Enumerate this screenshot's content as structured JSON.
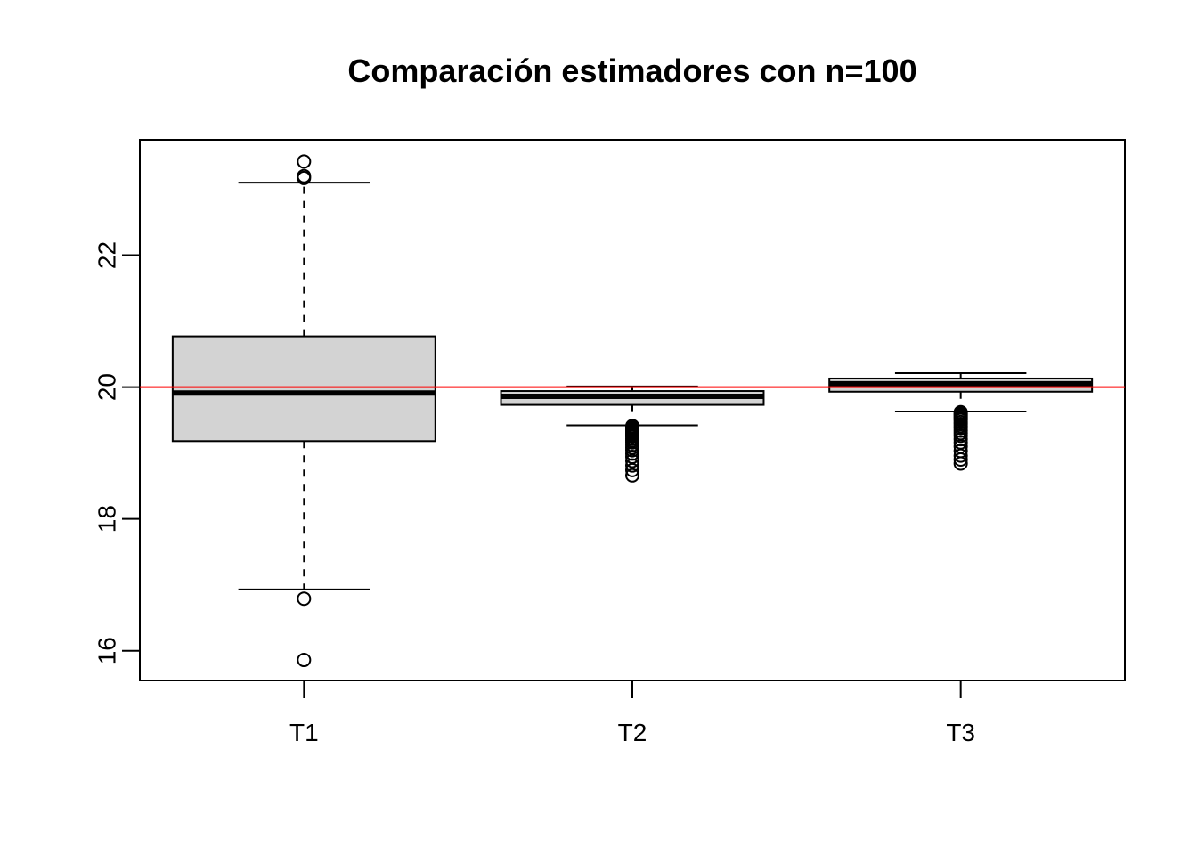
{
  "chart_data": {
    "type": "boxplot",
    "title": "Comparación estimadores con n=100",
    "xlabel": "",
    "ylabel": "",
    "categories": [
      "T1",
      "T2",
      "T3"
    ],
    "ylim": [
      15.55,
      23.75
    ],
    "yticks": [
      16,
      18,
      20,
      22
    ],
    "reference_line": {
      "y": 20,
      "color": "#ff0000"
    },
    "box_fill": "#d3d3d3",
    "boxes": [
      {
        "name": "T1",
        "whisker_low": 16.93,
        "q1": 19.18,
        "median": 19.91,
        "q3": 20.77,
        "whisker_high": 23.1,
        "outliers": [
          23.42,
          23.2,
          23.17,
          16.79,
          15.86
        ]
      },
      {
        "name": "T2",
        "whisker_low": 19.42,
        "q1": 19.73,
        "median": 19.86,
        "q3": 19.94,
        "whisker_high": 20.01,
        "outliers": [
          19.41,
          19.39,
          19.37,
          19.35,
          19.33,
          19.31,
          19.29,
          19.27,
          19.25,
          19.22,
          19.19,
          19.16,
          19.12,
          19.08,
          19.04,
          18.99,
          18.94,
          18.88,
          18.81,
          18.74,
          18.66
        ]
      },
      {
        "name": "T3",
        "whisker_low": 19.63,
        "q1": 19.93,
        "median": 20.05,
        "q3": 20.13,
        "whisker_high": 20.21,
        "outliers": [
          19.62,
          19.6,
          19.58,
          19.56,
          19.54,
          19.52,
          19.5,
          19.47,
          19.44,
          19.41,
          19.38,
          19.34,
          19.3,
          19.26,
          19.21,
          19.16,
          19.1,
          19.03,
          18.96,
          18.9,
          18.84
        ]
      }
    ]
  }
}
